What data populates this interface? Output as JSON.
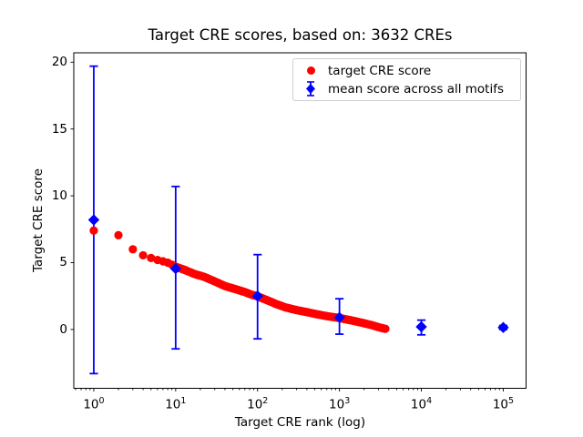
{
  "title": "Target CRE scores, based on: 3632 CREs",
  "legend": {
    "items": [
      {
        "label": "target CRE score",
        "marker": "circle",
        "color": "#ff0000"
      },
      {
        "label": "mean score across all motifs",
        "marker": "diamond-errorbar",
        "color": "#0000ff"
      }
    ]
  },
  "colors": {
    "red": "#ff0000",
    "blue": "#0000ff",
    "axis": "#000000",
    "background": "#ffffff",
    "legend_border": "#d0d0d0"
  },
  "chart_data": {
    "type": "scatter",
    "title": "Target CRE scores, based on: 3632 CREs",
    "xlabel": "Target CRE rank (log)",
    "ylabel": "Target CRE score",
    "xscale": "log",
    "xlim": [
      0.57,
      190000
    ],
    "ylim": [
      -4.4,
      20.7
    ],
    "x_ticks": [
      {
        "value": 1,
        "base": "10",
        "exp": "0"
      },
      {
        "value": 10,
        "base": "10",
        "exp": "1"
      },
      {
        "value": 100,
        "base": "10",
        "exp": "2"
      },
      {
        "value": 1000,
        "base": "10",
        "exp": "3"
      },
      {
        "value": 10000,
        "base": "10",
        "exp": "4"
      },
      {
        "value": 100000,
        "base": "10",
        "exp": "5"
      }
    ],
    "y_ticks": [
      0,
      5,
      10,
      15,
      20
    ],
    "grid": false,
    "legend_position": "upper center-right inside axes",
    "series": [
      {
        "name": "target CRE score",
        "marker": "circle",
        "color": "#ff0000",
        "n_points": 3632,
        "x_range": [
          1,
          3632
        ],
        "note": "dense monotonically decreasing curve of 3632 ranked scores; control points sampled from plot",
        "control_points": [
          [
            1,
            7.4
          ],
          [
            2,
            7.05
          ],
          [
            3,
            6.0
          ],
          [
            4,
            5.55
          ],
          [
            5,
            5.35
          ],
          [
            6,
            5.2
          ],
          [
            7,
            5.1
          ],
          [
            8,
            5.0
          ],
          [
            9,
            4.85
          ],
          [
            10,
            4.7
          ],
          [
            13,
            4.45
          ],
          [
            17,
            4.15
          ],
          [
            22,
            3.95
          ],
          [
            30,
            3.6
          ],
          [
            40,
            3.25
          ],
          [
            55,
            3.0
          ],
          [
            70,
            2.8
          ],
          [
            85,
            2.6
          ],
          [
            100,
            2.48
          ],
          [
            130,
            2.2
          ],
          [
            170,
            1.9
          ],
          [
            220,
            1.65
          ],
          [
            300,
            1.45
          ],
          [
            400,
            1.3
          ],
          [
            520,
            1.15
          ],
          [
            700,
            1.0
          ],
          [
            1000,
            0.86
          ],
          [
            1400,
            0.68
          ],
          [
            1900,
            0.5
          ],
          [
            2500,
            0.32
          ],
          [
            3100,
            0.15
          ],
          [
            3632,
            0.05
          ]
        ]
      },
      {
        "name": "mean score across all motifs",
        "marker": "diamond",
        "color": "#0000ff",
        "points": [
          {
            "x": 1,
            "y": 8.2,
            "err_lo": -3.3,
            "err_hi": 19.7
          },
          {
            "x": 10,
            "y": 4.55,
            "err_lo": -1.45,
            "err_hi": 10.7
          },
          {
            "x": 100,
            "y": 2.5,
            "err_lo": -0.7,
            "err_hi": 5.6
          },
          {
            "x": 1000,
            "y": 0.9,
            "err_lo": -0.35,
            "err_hi": 2.3
          },
          {
            "x": 10000,
            "y": 0.2,
            "err_lo": -0.4,
            "err_hi": 0.7
          },
          {
            "x": 100000,
            "y": 0.15,
            "err_lo": 0.0,
            "err_hi": 0.3
          }
        ]
      }
    ]
  }
}
